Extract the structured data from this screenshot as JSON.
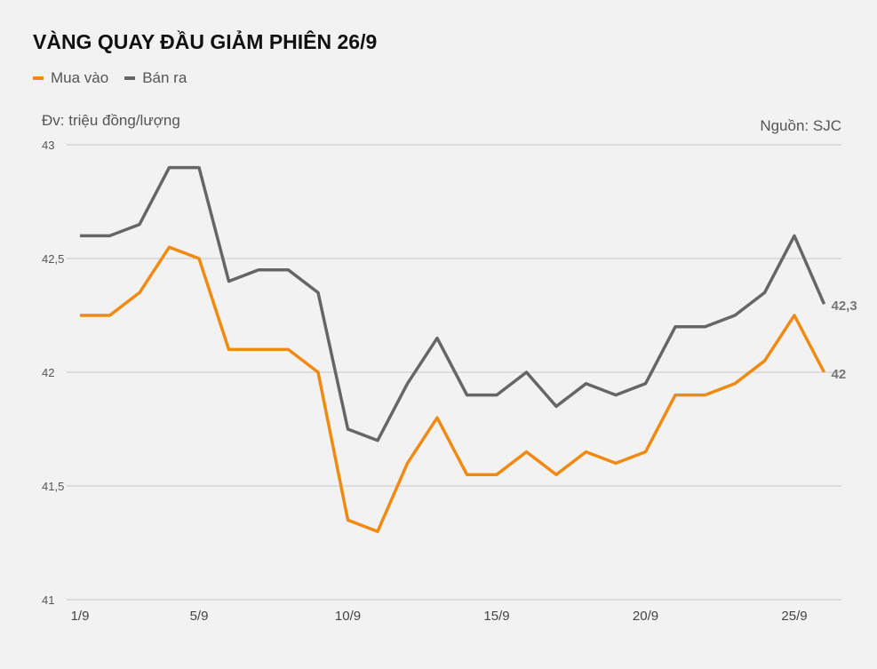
{
  "chart_data": {
    "type": "line",
    "title": "VÀNG QUAY ĐẦU GIẢM PHIÊN 26/9",
    "unit_label": "Đv: triệu đồng/lượng",
    "source": "Nguồn: SJC",
    "x": [
      "1/9",
      "2/9",
      "3/9",
      "4/9",
      "5/9",
      "6/9",
      "7/9",
      "8/9",
      "9/9",
      "10/9",
      "11/9",
      "12/9",
      "13/9",
      "14/9",
      "15/9",
      "16/9",
      "17/9",
      "18/9",
      "19/9",
      "20/9",
      "21/9",
      "22/9",
      "23/9",
      "24/9",
      "25/9",
      "26/9"
    ],
    "x_tick_labels": [
      "1/9",
      "5/9",
      "10/9",
      "15/9",
      "20/9",
      "25/9"
    ],
    "y_tick_values": [
      41,
      41.5,
      42,
      42.5,
      43
    ],
    "y_tick_labels": [
      "41",
      "41,5",
      "42",
      "42,5",
      "43"
    ],
    "ylim": [
      41,
      43
    ],
    "grid": true,
    "legend_position": "top-left",
    "series": [
      {
        "name": "Mua vào",
        "color": "#f08a12",
        "end_label": "42",
        "values": [
          42.25,
          42.25,
          42.35,
          42.55,
          42.5,
          42.1,
          42.1,
          42.1,
          42.0,
          41.35,
          41.3,
          41.6,
          41.8,
          41.55,
          41.55,
          41.65,
          41.55,
          41.65,
          41.6,
          41.65,
          41.9,
          41.9,
          41.95,
          42.05,
          42.25,
          42.0
        ]
      },
      {
        "name": "Bán ra",
        "color": "#666666",
        "end_label": "42,3",
        "values": [
          42.6,
          42.6,
          42.65,
          42.9,
          42.9,
          42.4,
          42.45,
          42.45,
          42.35,
          41.75,
          41.7,
          41.95,
          42.15,
          41.9,
          41.9,
          42.0,
          41.85,
          41.95,
          41.9,
          41.95,
          42.2,
          42.2,
          42.25,
          42.35,
          42.6,
          42.3
        ]
      }
    ]
  }
}
